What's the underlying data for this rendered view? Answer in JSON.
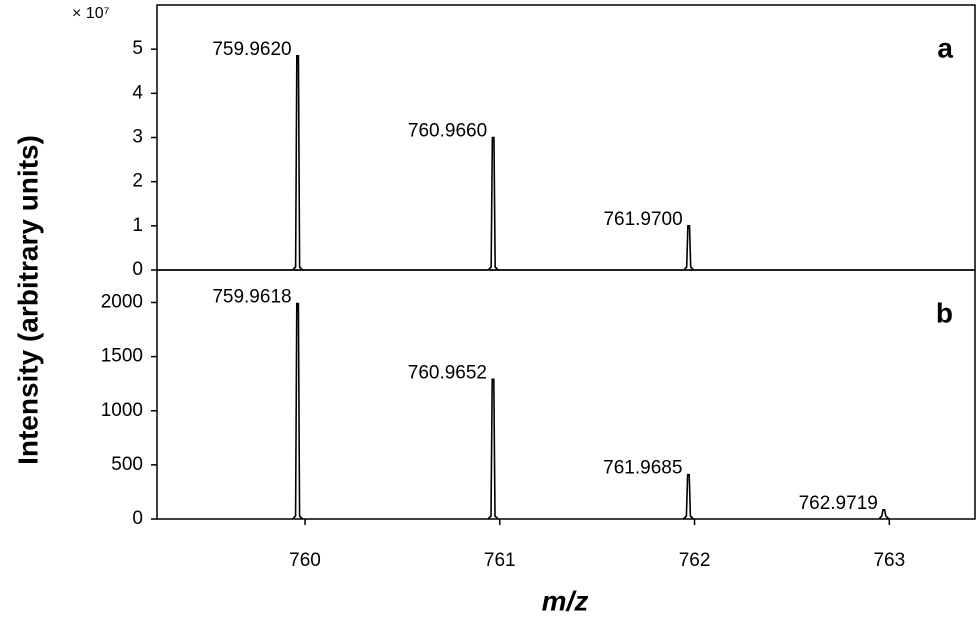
{
  "chart_data": [
    {
      "type": "spectrum",
      "panel_label": "a",
      "y_label": "Intensity (arbitrary units)",
      "y_multiplier": "× 10⁷",
      "x": [
        759.962,
        760.966,
        761.97
      ],
      "values": [
        4.85,
        3.0,
        1.0
      ],
      "peak_labels": [
        "759.9620",
        "760.9660",
        "761.9700"
      ],
      "color": "#000000",
      "xlim": [
        759.24,
        763.44
      ],
      "ylim": [
        0,
        6
      ],
      "yticks": [
        0,
        1,
        2,
        3,
        4,
        5
      ]
    },
    {
      "type": "spectrum",
      "panel_label": "b",
      "x_label": "m/z",
      "x": [
        759.9618,
        760.9652,
        761.9685,
        762.9719
      ],
      "values": [
        1990,
        1290,
        410,
        85
      ],
      "peak_labels": [
        "759.9618",
        "760.9652",
        "761.9685",
        "762.9719"
      ],
      "color": "#000000",
      "xlim": [
        759.24,
        763.44
      ],
      "ylim": [
        0,
        2300
      ],
      "yticks": [
        0,
        500,
        1000,
        1500,
        2000
      ],
      "xticks": [
        760,
        761,
        762,
        763
      ]
    }
  ]
}
